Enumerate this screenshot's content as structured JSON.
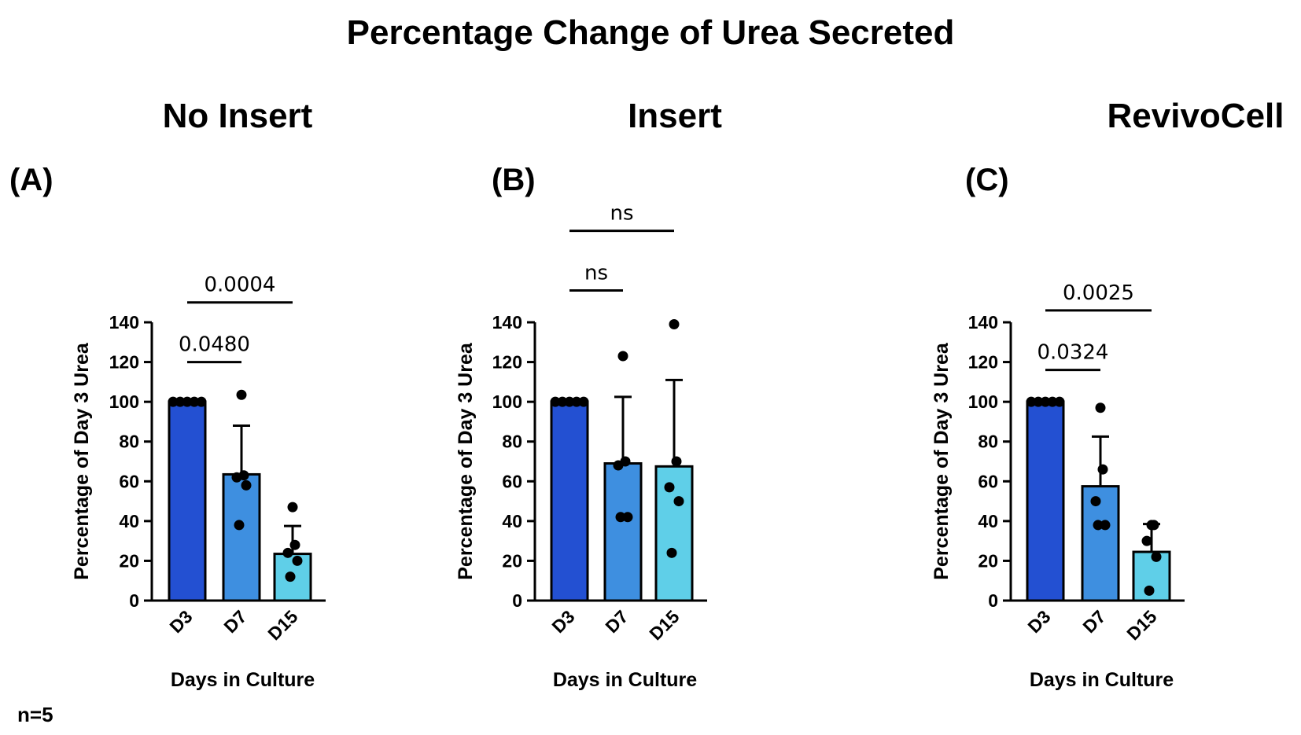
{
  "figure": {
    "title": "Percentage Change of Urea Secreted",
    "note": "n=5"
  },
  "colors": {
    "D3": "#2350d2",
    "D7": "#3e8fe0",
    "D15": "#5fcfe8",
    "bar_stroke": "#000000",
    "point": "#000000"
  },
  "chart_data": [
    {
      "type": "bar",
      "panel_title": "No Insert",
      "panel_letter": "(A)",
      "categories": [
        "D3",
        "D7",
        "D15"
      ],
      "values": [
        100,
        63.5,
        23.5
      ],
      "error": [
        0,
        24.5,
        14
      ],
      "points": [
        [
          100,
          100,
          100,
          100,
          100
        ],
        [
          103.5,
          63,
          62,
          58,
          38
        ],
        [
          47,
          28,
          24,
          20,
          12
        ]
      ],
      "xlabel": "Days in Culture",
      "ylabel": "Percentage of Day 3 Urea",
      "ylim": [
        0,
        140
      ],
      "yticks": [
        0,
        20,
        40,
        60,
        80,
        100,
        120,
        140
      ],
      "comparisons": [
        {
          "from": "D3",
          "to": "D7",
          "label": "0.0480",
          "y_value": 120
        },
        {
          "from": "D3",
          "to": "D15",
          "label": "0.0004",
          "y_value": 150
        }
      ]
    },
    {
      "type": "bar",
      "panel_title": "Insert",
      "panel_letter": "(B)",
      "categories": [
        "D3",
        "D7",
        "D15"
      ],
      "values": [
        100,
        69,
        67.5
      ],
      "error": [
        0,
        33.5,
        43.5
      ],
      "points": [
        [
          100,
          100,
          100,
          100,
          100
        ],
        [
          123,
          70,
          68,
          42,
          42
        ],
        [
          139,
          70,
          57,
          50,
          24
        ]
      ],
      "xlabel": "Days in Culture",
      "ylabel": "Percentage of Day 3 Urea",
      "ylim": [
        0,
        140
      ],
      "yticks": [
        0,
        20,
        40,
        60,
        80,
        100,
        120,
        140
      ],
      "comparisons": [
        {
          "from": "D3",
          "to": "D7",
          "label": "ns",
          "y_value": 156
        },
        {
          "from": "D3",
          "to": "D15",
          "label": "ns",
          "y_value": 186
        }
      ]
    },
    {
      "type": "bar",
      "panel_title": "RevivoCell",
      "panel_letter": "(C)",
      "categories": [
        "D3",
        "D7",
        "D15"
      ],
      "values": [
        100,
        57.5,
        24.5
      ],
      "error": [
        0,
        25,
        14
      ],
      "points": [
        [
          100,
          100,
          100,
          100,
          100
        ],
        [
          97,
          66,
          50,
          38,
          38
        ],
        [
          38,
          38,
          30,
          22,
          5
        ]
      ],
      "xlabel": "Days in Culture",
      "ylabel": "Percentage of Day 3 Urea",
      "ylim": [
        0,
        140
      ],
      "yticks": [
        0,
        20,
        40,
        60,
        80,
        100,
        120,
        140
      ],
      "comparisons": [
        {
          "from": "D3",
          "to": "D7",
          "label": "0.0324",
          "y_value": 116
        },
        {
          "from": "D3",
          "to": "D15",
          "label": "0.0025",
          "y_value": 146
        }
      ]
    }
  ]
}
